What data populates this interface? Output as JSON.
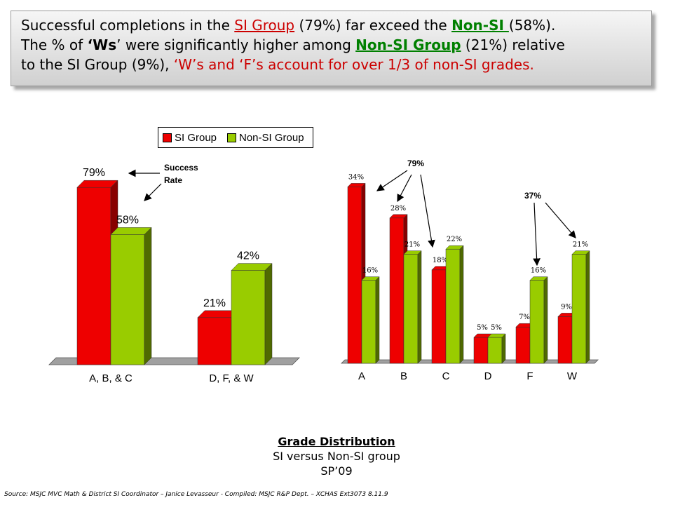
{
  "banner": {
    "p1": "Successful completions in the ",
    "si_group": "SI Group",
    "p2": " (79%) far exceed the ",
    "non_si": "Non-SI ",
    "p3": "(58%).",
    "p4": "The % of  ",
    "ws": "‘Ws",
    "p5": "’ were significantly higher among ",
    "non_si_group": "Non-SI Group",
    "p6": " (21%) relative",
    "p7": "to the SI Group (9%), ",
    "p8": "‘W’s and ‘F’s account for over 1/3 of non-SI grades."
  },
  "legend": {
    "si": "SI Group",
    "nonsi": "Non-SI Group"
  },
  "colors": {
    "si": "#ee0000",
    "nonsi": "#99cc00",
    "si_side": "#880000",
    "nonsi_side": "#4f6a00"
  },
  "annotations": {
    "success_rate": [
      "Success",
      "Rate"
    ],
    "left_pct": "79%",
    "right_pct": "37%"
  },
  "caption": {
    "title": "Grade Distribution",
    "line2": "SI versus Non-SI group",
    "line3": "SP’09"
  },
  "source": "Source: MSJC MVC Math & District SI Coordinator – Janice Levasseur - Compiled: MSJC R&P Dept. – XCHAS  Ext3073 8.11.9",
  "chart_data": [
    {
      "type": "bar",
      "categories": [
        "A, B, & C",
        "D, F, & W"
      ],
      "series": [
        {
          "name": "SI Group",
          "values": [
            79,
            21
          ]
        },
        {
          "name": "Non-SI Group",
          "values": [
            58,
            42
          ]
        }
      ],
      "data_labels": [
        [
          "79%",
          "21%"
        ],
        [
          "58%",
          "42%"
        ]
      ],
      "ylim": [
        0,
        100
      ],
      "legend": "top"
    },
    {
      "type": "bar",
      "categories": [
        "A",
        "B",
        "C",
        "D",
        "F",
        "W"
      ],
      "series": [
        {
          "name": "SI Group",
          "values": [
            34,
            28,
            18,
            5,
            7,
            9
          ]
        },
        {
          "name": "Non-SI Group",
          "values": [
            16,
            21,
            22,
            5,
            16,
            21
          ]
        }
      ],
      "data_labels": [
        [
          "34%",
          "28%",
          "18%",
          "5%",
          "7%",
          "9%"
        ],
        [
          "16%",
          "21%",
          "22%",
          "5%",
          "16%",
          "21%"
        ]
      ],
      "ylim": [
        0,
        40
      ]
    }
  ]
}
